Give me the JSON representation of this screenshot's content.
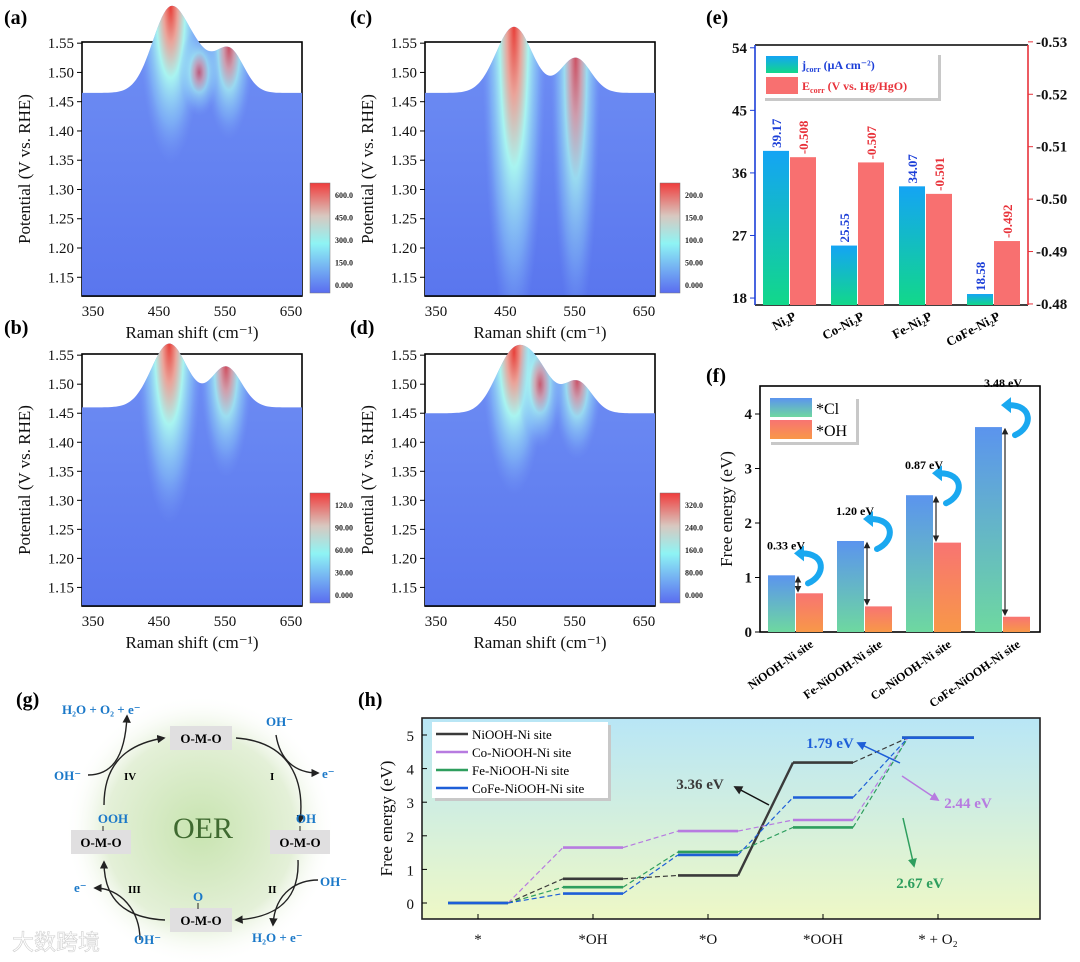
{
  "panel_labels": [
    "(a)",
    "(b)",
    "(c)",
    "(d)",
    "(e)",
    "(f)",
    "(g)",
    "(h)"
  ],
  "chart_data": [
    {
      "panel": "(a)",
      "type": "heatmap",
      "xlabel": "Raman shift (cm⁻¹)",
      "ylabel": "Potential (V vs. RHE)",
      "xlim": [
        345,
        655
      ],
      "ylim": [
        1.118,
        1.552
      ],
      "xticks": [
        "350",
        "450",
        "550",
        "650"
      ],
      "yticks": [
        "1.15",
        "1.20",
        "1.25",
        "1.30",
        "1.35",
        "1.40",
        "1.45",
        "1.50",
        "1.55"
      ],
      "plateau_potential": 1.465,
      "colorbar": [
        "0.000",
        "150.0",
        "300.0",
        "450.0",
        "600.0"
      ],
      "peaks": [
        {
          "shift": 470,
          "top_potential": 1.61,
          "intensity": 1.0,
          "extent": 0.12
        },
        {
          "shift": 552,
          "top_potential": 1.54,
          "intensity": 0.45,
          "extent": 0.08
        },
        {
          "shift": 510,
          "top_potential": 1.5,
          "intensity": 0.2,
          "extent": 0.04
        }
      ]
    },
    {
      "panel": "(b)",
      "type": "heatmap",
      "xlabel": "Raman shift (cm⁻¹)",
      "ylabel": "Potential (V vs. RHE)",
      "xlim": [
        345,
        655
      ],
      "ylim": [
        1.118,
        1.552
      ],
      "xticks": [
        "350",
        "450",
        "550",
        "650"
      ],
      "yticks": [
        "1.15",
        "1.20",
        "1.25",
        "1.30",
        "1.35",
        "1.40",
        "1.45",
        "1.50",
        "1.55"
      ],
      "plateau_potential": 1.46,
      "colorbar": [
        "0.000",
        "30.00",
        "60.00",
        "90.00",
        "120.0"
      ],
      "peaks": [
        {
          "shift": 468,
          "top_potential": 1.57,
          "intensity": 1.0,
          "extent": 0.2
        },
        {
          "shift": 548,
          "top_potential": 1.53,
          "intensity": 0.55,
          "extent": 0.12
        }
      ]
    },
    {
      "panel": "(c)",
      "type": "heatmap",
      "xlabel": "Raman shift (cm⁻¹)",
      "ylabel": "Potential (V vs. RHE)",
      "xlim": [
        345,
        655
      ],
      "ylim": [
        1.118,
        1.552
      ],
      "xticks": [
        "350",
        "450",
        "550",
        "650"
      ],
      "yticks": [
        "1.15",
        "1.20",
        "1.25",
        "1.30",
        "1.35",
        "1.40",
        "1.45",
        "1.50",
        "1.55"
      ],
      "plateau_potential": 1.465,
      "colorbar": [
        "0.000",
        "50.00",
        "100.0",
        "150.0",
        "200.0"
      ],
      "peaks": [
        {
          "shift": 465,
          "top_potential": 1.578,
          "intensity": 1.0,
          "extent": 0.42
        },
        {
          "shift": 548,
          "top_potential": 1.525,
          "intensity": 0.5,
          "extent": 0.4
        }
      ]
    },
    {
      "panel": "(d)",
      "type": "heatmap",
      "xlabel": "Raman shift (cm⁻¹)",
      "ylabel": "Potential (V vs. RHE)",
      "xlim": [
        345,
        655
      ],
      "ylim": [
        1.118,
        1.552
      ],
      "xticks": [
        "350",
        "450",
        "550",
        "650"
      ],
      "yticks": [
        "1.15",
        "1.20",
        "1.25",
        "1.30",
        "1.35",
        "1.40",
        "1.45",
        "1.50",
        "1.55"
      ],
      "plateau_potential": 1.45,
      "colorbar": [
        "0.000",
        "80.00",
        "160.0",
        "240.0",
        "320.0"
      ],
      "peaks": [
        {
          "shift": 465,
          "top_potential": 1.555,
          "intensity": 1.0,
          "extent": 0.14
        },
        {
          "shift": 550,
          "top_potential": 1.505,
          "intensity": 0.45,
          "extent": 0.08
        },
        {
          "shift": 500,
          "top_potential": 1.5,
          "intensity": 0.35,
          "extent": 0.06
        }
      ]
    },
    {
      "panel": "(e)",
      "type": "bar",
      "categories": [
        "Ni₂P",
        "Co-Ni₂P",
        "Fe-Ni₂P",
        "CoFe-Ni₂P"
      ],
      "series": [
        {
          "name": "jcorr",
          "legend": {
            "main": "j",
            "sub": "corr",
            "rest": " (μA cm⁻²)"
          },
          "axis": "left",
          "values": [
            39.17,
            25.55,
            34.07,
            18.58
          ],
          "labels": [
            "39.17",
            "25.55",
            "34.07",
            "18.58"
          ],
          "color": "#1a9ef0"
        },
        {
          "name": "Ecorr",
          "legend": {
            "main": "E",
            "sub": "corr",
            "rest": " (V vs. Hg/HgO)"
          },
          "axis": "right",
          "values": [
            -0.508,
            -0.507,
            -0.501,
            -0.492
          ],
          "labels": [
            "-0.508",
            "-0.507",
            "-0.501",
            "-0.492"
          ],
          "color": "#f87070"
        }
      ],
      "left_ylim": [
        17,
        54.4
      ],
      "left_yticks": [
        "18",
        "27",
        "36",
        "45",
        "54"
      ],
      "right_ylim": [
        -0.4798,
        -0.5294
      ],
      "right_yticks": [
        "-0.48",
        "-0.49",
        "-0.50",
        "-0.51",
        "-0.52",
        "-0.53"
      ],
      "left_color": "#1c3fd8",
      "right_color": "#e8323a",
      "legend_position": "top-left"
    },
    {
      "panel": "(f)",
      "type": "bar",
      "categories": [
        "NiOOH-Ni site",
        "Fe-NiOOH-Ni site",
        "Co-NiOOH-Ni site",
        "CoFe-NiOOH-Ni site"
      ],
      "ylabel": "Free energy (eV)",
      "ylim": [
        0,
        4.5
      ],
      "yticks": [
        "0",
        "1",
        "2",
        "3",
        "4"
      ],
      "series": [
        {
          "name": "*Cl",
          "values": [
            1.04,
            1.67,
            2.51,
            3.76
          ]
        },
        {
          "name": "*OH",
          "values": [
            0.71,
            0.47,
            1.64,
            0.28
          ]
        }
      ],
      "differences": [
        "0.33 eV",
        "1.20 eV",
        "0.87 eV",
        "3.48 eV"
      ],
      "legend_position": "top-left"
    },
    {
      "panel": "(g)",
      "type": "diagram",
      "center": "OER",
      "sites": {
        "top": "O-M-O",
        "right": "O-M-O",
        "bottom": "O-M-O",
        "left": "O-M-O"
      },
      "adsorbates": {
        "right": "OH",
        "bottom": "O",
        "left": "OOH"
      },
      "steps": [
        "I",
        "II",
        "III",
        "IV"
      ],
      "species": {
        "in_I": "OH⁻",
        "out_I": "e⁻",
        "in_II": "OH⁻",
        "out_II": "H₂O + e⁻",
        "in_III": "OH⁻",
        "out_III": "e⁻",
        "in_IV": "OH⁻",
        "out_IV": "H₂O + O₂ + e⁻"
      }
    },
    {
      "panel": "(h)",
      "type": "line",
      "ylabel": "Free energy (eV)",
      "ylim": [
        -0.48,
        5.5
      ],
      "yticks": [
        "0",
        "1",
        "2",
        "3",
        "4",
        "5"
      ],
      "categories": [
        "*",
        "*OH",
        "*O",
        "*OOH",
        "* + O₂"
      ],
      "series": [
        {
          "name": "NiOOH-Ni site",
          "color": "#3a3a3a",
          "values": [
            0,
            0.72,
            0.82,
            4.18,
            4.92
          ]
        },
        {
          "name": "Co-NiOOH-Ni site",
          "color": "#b77be0",
          "values": [
            0,
            1.65,
            2.14,
            2.47,
            4.92
          ]
        },
        {
          "name": "Fe-NiOOH-Ni site",
          "color": "#2e9e5e",
          "values": [
            0,
            0.47,
            1.52,
            2.25,
            4.92
          ]
        },
        {
          "name": "CoFe-NiOOH-Ni site",
          "color": "#1e5fd8",
          "values": [
            0,
            0.28,
            1.43,
            3.14,
            4.92
          ]
        }
      ],
      "annotations": [
        "3.36 eV",
        "1.79 eV",
        "2.44 eV",
        "2.67 eV"
      ],
      "legend_position": "top-left"
    }
  ],
  "watermark": "大数跨境"
}
